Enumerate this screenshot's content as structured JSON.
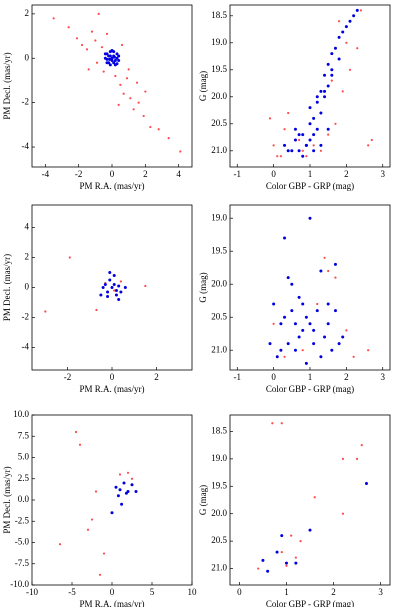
{
  "chart_data": [
    {
      "type": "scatter",
      "xlabel": "PM R.A. (mas/yr)",
      "ylabel": "PM Decl. (mas/yr)",
      "xlim": [
        -4.8,
        4.8
      ],
      "ylim": [
        -4.9,
        2.4
      ],
      "xticks": [
        -4,
        -2,
        0,
        2,
        4
      ],
      "yticks": [
        -4,
        -2,
        0,
        2
      ],
      "series": [
        {
          "color": "#ff4a4a",
          "x": [
            -3.5,
            -2.6,
            -2.1,
            -1.8,
            -1.5,
            -1.2,
            -1.0,
            -0.8,
            -0.6,
            -0.5,
            -0.3,
            0.2,
            0.5,
            0.7,
            0.9,
            1.1,
            1.3,
            1.6,
            1.9,
            2.3,
            2.8,
            3.4,
            4.1,
            -0.9,
            0.4,
            1.0,
            1.5,
            -1.4,
            2.0,
            0.6
          ],
          "values": [
            1.8,
            1.4,
            0.9,
            0.6,
            0.4,
            1.2,
            0.8,
            2.0,
            0.5,
            -0.6,
            1.1,
            -0.8,
            -1.2,
            -1.6,
            -0.9,
            -1.8,
            -2.3,
            -2.0,
            -2.6,
            -3.1,
            -3.2,
            -3.6,
            -4.2,
            -0.2,
            -2.1,
            -0.5,
            -1.1,
            -0.5,
            -1.5,
            0.6
          ]
        },
        {
          "color": "#0000e0",
          "x": [
            -0.4,
            -0.3,
            -0.2,
            -0.1,
            0,
            0.1,
            0.2,
            0.3,
            0.4,
            -0.3,
            -0.1,
            0.1,
            0.3,
            -0.2,
            0,
            0.2,
            -0.4,
            0.4,
            -0.1,
            0.1,
            0,
            -0.3,
            0.3,
            0.15,
            -0.15
          ],
          "values": [
            0,
            0.2,
            -0.2,
            0.3,
            0,
            0.1,
            -0.3,
            0.2,
            -0.1,
            -0.2,
            -0.3,
            0.3,
            0,
            0.1,
            -0.1,
            -0.1,
            0.2,
            0.1,
            0.1,
            -0.2,
            0.35,
            -0.05,
            -0.25,
            0.05,
            -0.05
          ]
        }
      ]
    },
    {
      "type": "scatter",
      "xlabel": "Color GBP - GRP (mag)",
      "ylabel": "G (mag)",
      "xlim": [
        -1.2,
        3.2
      ],
      "ylim": [
        21.3,
        18.3
      ],
      "xticks": [
        -1,
        0,
        1,
        2,
        3
      ],
      "yticks": [
        18.5,
        {
          "value": 19,
          "label": "19.0"
        },
        19.5,
        {
          "value": 20,
          "label": "20.0"
        },
        20.5,
        {
          "value": 21,
          "label": "21.0"
        }
      ],
      "series": [
        {
          "color": "#ff4a4a",
          "x": [
            -0.1,
            0.0,
            0.2,
            0.3,
            0.5,
            0.7,
            0.9,
            1.1,
            1.3,
            1.5,
            1.7,
            1.9,
            2.1,
            2.3,
            2.6,
            1.8,
            0.4,
            0.1,
            1.0,
            2.4,
            1.6,
            2.0,
            0.8,
            1.2,
            2.7
          ],
          "values": [
            20.4,
            20.9,
            21.1,
            20.6,
            21.0,
            20.8,
            21.1,
            20.9,
            21.0,
            20.7,
            20.5,
            19.9,
            19.5,
            19.1,
            20.9,
            18.6,
            20.3,
            21.1,
            20.8,
            18.4,
            19.7,
            19.0,
            21.0,
            20.6,
            20.8
          ]
        },
        {
          "color": "#0000e0",
          "x": [
            0.3,
            0.5,
            0.6,
            0.7,
            0.8,
            0.9,
            1.0,
            1.0,
            1.1,
            1.1,
            1.2,
            1.2,
            1.3,
            1.3,
            1.4,
            1.4,
            1.5,
            1.5,
            1.6,
            1.6,
            1.7,
            1.8,
            1.9,
            2.0,
            2.1,
            2.2,
            2.3,
            0.7,
            0.9,
            1.1,
            1.3,
            1.5,
            0.4,
            0.6,
            0.8,
            1.0,
            1.2,
            1.4,
            1.6,
            1.8
          ],
          "values": [
            20.9,
            21.0,
            20.8,
            21.0,
            20.7,
            20.9,
            20.5,
            20.8,
            20.4,
            20.7,
            20.1,
            20.6,
            19.9,
            20.3,
            19.6,
            20.0,
            19.4,
            19.8,
            19.2,
            19.6,
            19.1,
            18.9,
            18.8,
            18.7,
            18.6,
            18.5,
            18.4,
            20.7,
            20.9,
            21.0,
            20.9,
            20.6,
            21.0,
            20.6,
            21.1,
            20.2,
            20.0,
            19.9,
            19.5,
            19.3
          ]
        }
      ]
    },
    {
      "type": "scatter",
      "xlabel": "PM R.A. (mas/yr)",
      "ylabel": "PM Decl. (mas/yr)",
      "xlim": [
        -3.6,
        3.6
      ],
      "ylim": [
        -5.5,
        5.5
      ],
      "xticks": [
        -2,
        0,
        2
      ],
      "yticks": [
        -4,
        -2,
        0,
        2,
        4
      ],
      "series": [
        {
          "color": "#ff4a4a",
          "x": [
            -1.9,
            -3.0,
            1.5,
            -0.3,
            0.1,
            0.4,
            -0.7
          ],
          "values": [
            2.0,
            -1.6,
            0.1,
            0.3,
            -0.2,
            0.4,
            -1.5
          ]
        },
        {
          "color": "#0000e0",
          "x": [
            -0.4,
            -0.3,
            -0.2,
            -0.1,
            0,
            0.1,
            0.2,
            0.3,
            0.4,
            0.1,
            -0.2,
            0.2,
            -0.1,
            0.3,
            0.6,
            -0.5
          ],
          "values": [
            0,
            0.2,
            -0.3,
            0.5,
            0,
            0.2,
            -0.2,
            0.1,
            -0.3,
            0.8,
            -0.6,
            -0.5,
            1.0,
            -0.8,
            0.0,
            -0.5
          ]
        }
      ]
    },
    {
      "type": "scatter",
      "xlabel": "Color GBP - GRP (mag)",
      "ylabel": "G (mag)",
      "xlim": [
        -1.2,
        3.2
      ],
      "ylim": [
        21.3,
        18.8
      ],
      "xticks": [
        -1,
        0,
        1,
        2,
        3
      ],
      "yticks": [
        {
          "value": 19,
          "label": "19.0"
        },
        19.5,
        {
          "value": 20,
          "label": "20.0"
        },
        20.5,
        {
          "value": 21,
          "label": "21.0"
        }
      ],
      "series": [
        {
          "color": "#ff4a4a",
          "x": [
            0.0,
            0.8,
            1.4,
            1.7,
            2.0,
            2.6,
            1.2,
            0.3,
            1.5,
            2.2
          ],
          "values": [
            20.6,
            21.0,
            19.6,
            19.9,
            20.7,
            21.0,
            20.3,
            21.1,
            19.8,
            21.1
          ]
        },
        {
          "color": "#0000e0",
          "x": [
            -0.1,
            0.0,
            0.1,
            0.2,
            0.3,
            0.4,
            0.5,
            0.6,
            0.7,
            0.8,
            0.9,
            1.0,
            1.1,
            1.2,
            1.3,
            1.4,
            1.5,
            1.6,
            1.7,
            1.8,
            0.5,
            0.9,
            1.0,
            0.2,
            0.7,
            1.3,
            1.5,
            0.8,
            0.3,
            1.9,
            0.4,
            1.1,
            0.6,
            1.7
          ],
          "values": [
            20.9,
            20.3,
            21.1,
            20.6,
            19.3,
            20.9,
            20.4,
            21.0,
            20.2,
            20.7,
            20.5,
            19.0,
            20.9,
            20.4,
            19.8,
            20.8,
            20.6,
            21.0,
            19.7,
            20.9,
            20.0,
            21.2,
            20.6,
            21.0,
            20.8,
            21.1,
            20.3,
            20.3,
            20.5,
            20.8,
            19.9,
            20.7,
            20.6,
            20.4
          ]
        }
      ]
    },
    {
      "type": "scatter",
      "xlabel": "PM R.A. (mas/yr)",
      "ylabel": "PM Decl. (mas/yr)",
      "xlim": [
        -10,
        10
      ],
      "ylim": [
        -10,
        10
      ],
      "xticks": [
        -10,
        -5,
        0,
        5,
        10
      ],
      "yticks": [
        {
          "value": -10,
          "label": "-10.0"
        },
        -7.5,
        {
          "value": -5,
          "label": "-5.0"
        },
        -2.5,
        {
          "value": 0,
          "label": "0.0"
        },
        2.5,
        {
          "value": 5,
          "label": "5.0"
        },
        7.5,
        {
          "value": 10,
          "label": "10.0"
        }
      ],
      "series": [
        {
          "color": "#ff4a4a",
          "x": [
            -4.5,
            -4,
            -6.5,
            -2.5,
            -3,
            -1,
            -1.5,
            1,
            2,
            2.5,
            -2
          ],
          "values": [
            8,
            6.5,
            -5.2,
            -2.3,
            -3.5,
            -6.3,
            -8.8,
            3,
            3.2,
            2.5,
            1.0
          ]
        },
        {
          "color": "#0000e0",
          "x": [
            0.5,
            1,
            1.5,
            2,
            2.5,
            0.8,
            1.2,
            0,
            3,
            1.8
          ],
          "values": [
            1.5,
            1.2,
            2,
            1,
            1.8,
            0.5,
            -0.5,
            -1.5,
            1,
            0.8
          ]
        }
      ]
    },
    {
      "type": "scatter",
      "xlabel": "Color GBP - GRP (mag)",
      "ylabel": "G (mag)",
      "xlim": [
        -0.2,
        3.2
      ],
      "ylim": [
        21.3,
        18.2
      ],
      "xticks": [
        0,
        1,
        2,
        3
      ],
      "yticks": [
        18.5,
        {
          "value": 19,
          "label": "19.0"
        },
        19.5,
        {
          "value": 20,
          "label": "20.0"
        },
        20.5,
        {
          "value": 21,
          "label": "21.0"
        }
      ],
      "series": [
        {
          "color": "#ff4a4a",
          "x": [
            0.7,
            0.9,
            1.1,
            1.3,
            1.6,
            2.2,
            2.6,
            2.5,
            2.2,
            0.9,
            1.0,
            1.2,
            0.4
          ],
          "values": [
            18.35,
            18.35,
            20.4,
            20.5,
            19.7,
            19.0,
            18.75,
            19.0,
            20.0,
            20.7,
            20.95,
            20.8,
            21.0
          ]
        },
        {
          "color": "#0000e0",
          "x": [
            0.5,
            0.8,
            1.0,
            1.2,
            1.5,
            2.7,
            0.9,
            0.6
          ],
          "values": [
            20.85,
            20.7,
            20.9,
            20.9,
            20.3,
            19.45,
            20.4,
            21.05
          ]
        }
      ]
    }
  ]
}
